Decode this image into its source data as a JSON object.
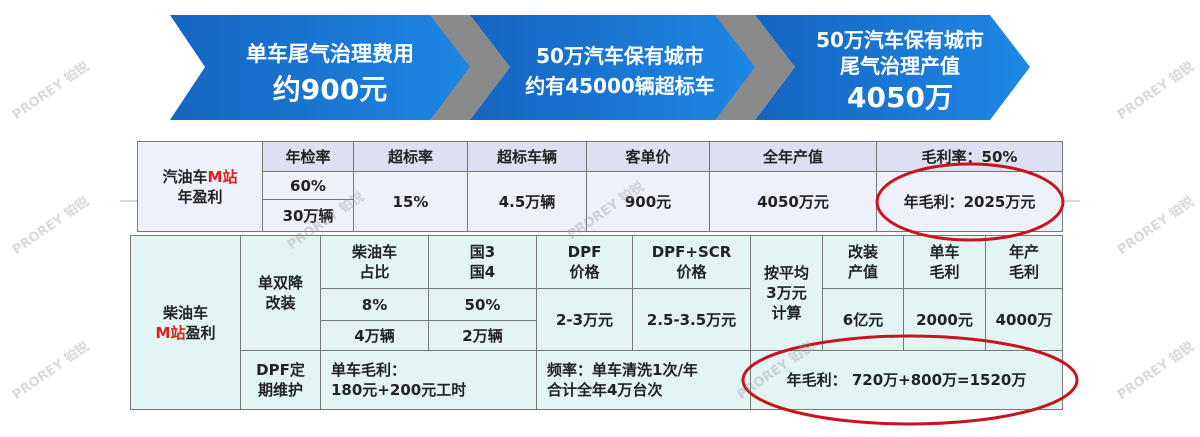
{
  "banners": [
    {
      "lines": [
        "单车尾气治理费用",
        "约900元"
      ]
    },
    {
      "lines": [
        "50万汽车保有城市",
        "约有45000辆超标车"
      ]
    },
    {
      "lines": [
        "50万汽车保有城市",
        "尾气治理产值",
        "4050万"
      ]
    }
  ],
  "gasoline_table": {
    "label": [
      "汽油车",
      "M站",
      "年盈利"
    ],
    "headers": [
      "年检率",
      "超标率",
      "超标车辆",
      "客单价",
      "全年产值",
      "毛利率：50%"
    ],
    "rows": [
      [
        "60%",
        "15%",
        "4.5万辆",
        "900元",
        "4050万元",
        "年毛利：2025万元"
      ],
      [
        "30万辆"
      ]
    ]
  },
  "diesel_table": {
    "label": [
      "柴油车",
      "M站",
      "盈利"
    ],
    "retrofit": [
      "单双降",
      "改装"
    ],
    "headers": [
      [
        "柴油车",
        "占比"
      ],
      [
        "国3",
        "国4"
      ],
      [
        "DPF",
        "价格"
      ],
      [
        "DPF+SCR",
        "价格"
      ],
      [
        "按平均",
        "3万元",
        "计算"
      ],
      [
        "改装",
        "产值"
      ],
      [
        "单车",
        "毛利"
      ],
      [
        "年产",
        "毛利"
      ]
    ],
    "row1": [
      "8%",
      "50%",
      "2-3万元",
      "2.5-3.5万元",
      "6亿元",
      "2000元",
      "4000万"
    ],
    "row2": [
      "4万辆",
      "2万辆"
    ],
    "maintenance": {
      "label": [
        "DPF定",
        "期维护"
      ],
      "margin": [
        "单车毛利：",
        "180元+200元工时"
      ],
      "frequency": [
        "频率：单车清洗1次/年",
        "合计全年4万台次"
      ],
      "annual": "年毛利： 720万+800万=1520万"
    }
  },
  "watermark": "PROREY 铂锐"
}
